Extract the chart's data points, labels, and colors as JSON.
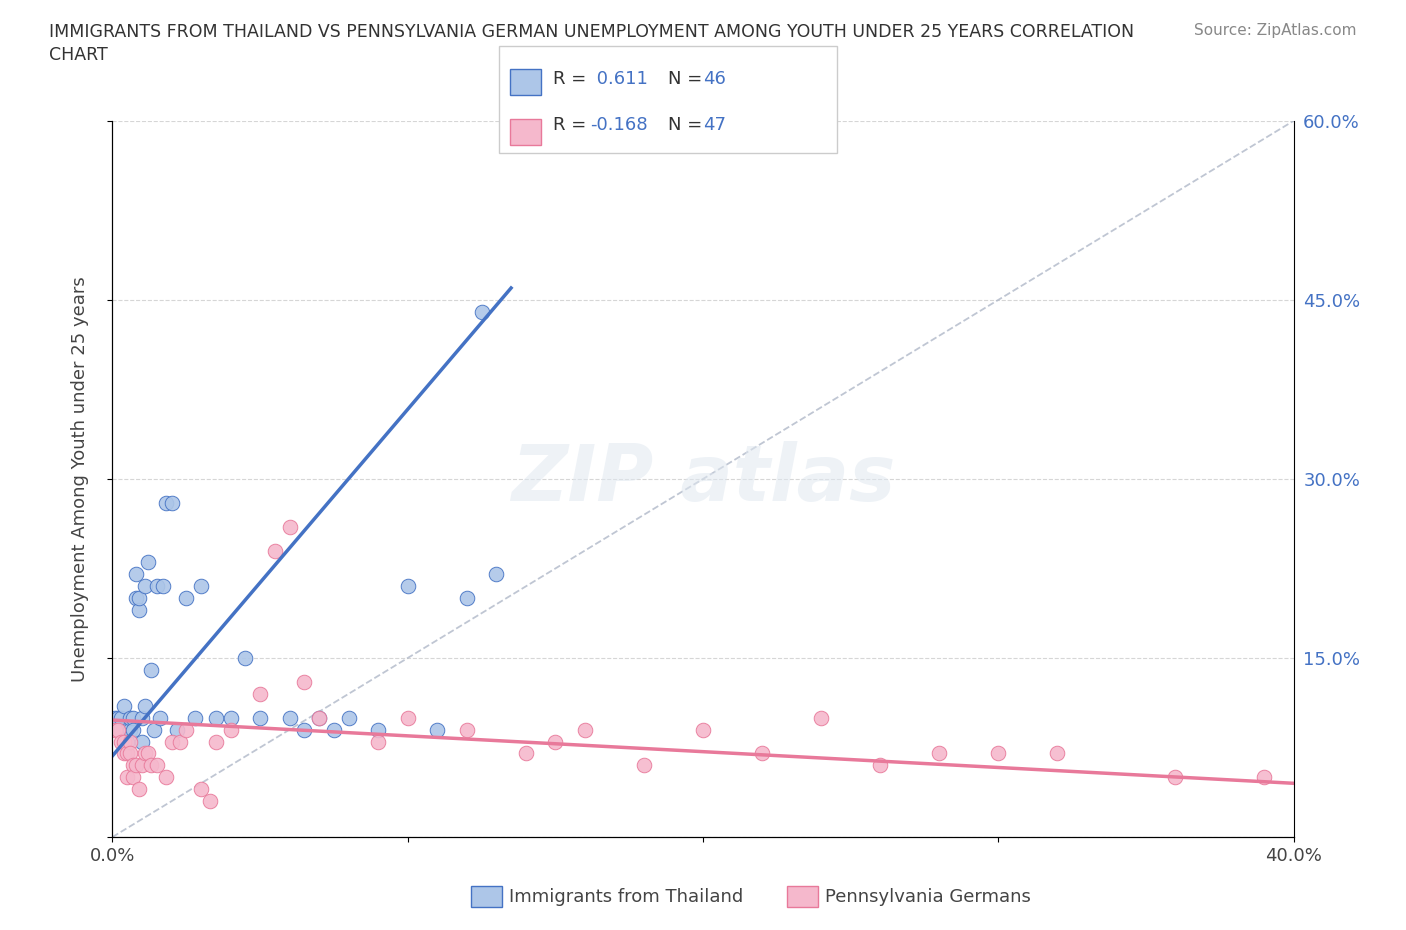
{
  "title_line1": "IMMIGRANTS FROM THAILAND VS PENNSYLVANIA GERMAN UNEMPLOYMENT AMONG YOUTH UNDER 25 YEARS CORRELATION",
  "title_line2": "CHART",
  "source": "Source: ZipAtlas.com",
  "ylabel": "Unemployment Among Youth under 25 years",
  "xlim": [
    0.0,
    0.4
  ],
  "ylim": [
    0.0,
    0.6
  ],
  "thailand_R": 0.611,
  "thailand_N": 46,
  "pagerman_R": -0.168,
  "pagerman_N": 47,
  "thailand_color": "#adc6e8",
  "pagerman_color": "#f5b8cc",
  "thailand_line_color": "#4472c4",
  "pagerman_line_color": "#e8799a",
  "ref_line_color": "#b0b8c8",
  "background_color": "#ffffff",
  "thailand_line_x0": 0.0,
  "thailand_line_y0": 0.068,
  "thailand_line_x1": 0.135,
  "thailand_line_y1": 0.46,
  "pagerman_line_x0": 0.0,
  "pagerman_line_y0": 0.098,
  "pagerman_line_x1": 0.4,
  "pagerman_line_y1": 0.045,
  "thailand_x": [
    0.001,
    0.002,
    0.003,
    0.003,
    0.004,
    0.005,
    0.005,
    0.006,
    0.006,
    0.007,
    0.007,
    0.008,
    0.008,
    0.009,
    0.009,
    0.01,
    0.01,
    0.011,
    0.011,
    0.012,
    0.013,
    0.014,
    0.015,
    0.016,
    0.017,
    0.018,
    0.02,
    0.022,
    0.025,
    0.028,
    0.03,
    0.035,
    0.04,
    0.045,
    0.05,
    0.06,
    0.065,
    0.07,
    0.075,
    0.08,
    0.09,
    0.1,
    0.11,
    0.12,
    0.125,
    0.13
  ],
  "thailand_y": [
    0.1,
    0.1,
    0.09,
    0.1,
    0.11,
    0.08,
    0.09,
    0.09,
    0.1,
    0.1,
    0.09,
    0.22,
    0.2,
    0.19,
    0.2,
    0.08,
    0.1,
    0.11,
    0.21,
    0.23,
    0.14,
    0.09,
    0.21,
    0.1,
    0.21,
    0.28,
    0.28,
    0.09,
    0.2,
    0.1,
    0.21,
    0.1,
    0.1,
    0.15,
    0.1,
    0.1,
    0.09,
    0.1,
    0.09,
    0.1,
    0.09,
    0.21,
    0.09,
    0.2,
    0.44,
    0.22
  ],
  "pagerman_x": [
    0.001,
    0.002,
    0.003,
    0.004,
    0.004,
    0.005,
    0.005,
    0.006,
    0.006,
    0.007,
    0.007,
    0.008,
    0.009,
    0.01,
    0.011,
    0.012,
    0.013,
    0.015,
    0.018,
    0.02,
    0.023,
    0.025,
    0.03,
    0.033,
    0.035,
    0.04,
    0.05,
    0.055,
    0.06,
    0.065,
    0.07,
    0.09,
    0.1,
    0.12,
    0.14,
    0.15,
    0.16,
    0.18,
    0.2,
    0.22,
    0.24,
    0.26,
    0.28,
    0.3,
    0.32,
    0.36,
    0.39
  ],
  "pagerman_y": [
    0.09,
    0.09,
    0.08,
    0.07,
    0.08,
    0.05,
    0.07,
    0.08,
    0.07,
    0.06,
    0.05,
    0.06,
    0.04,
    0.06,
    0.07,
    0.07,
    0.06,
    0.06,
    0.05,
    0.08,
    0.08,
    0.09,
    0.04,
    0.03,
    0.08,
    0.09,
    0.12,
    0.24,
    0.26,
    0.13,
    0.1,
    0.08,
    0.1,
    0.09,
    0.07,
    0.08,
    0.09,
    0.06,
    0.09,
    0.07,
    0.1,
    0.06,
    0.07,
    0.07,
    0.07,
    0.05,
    0.05
  ]
}
